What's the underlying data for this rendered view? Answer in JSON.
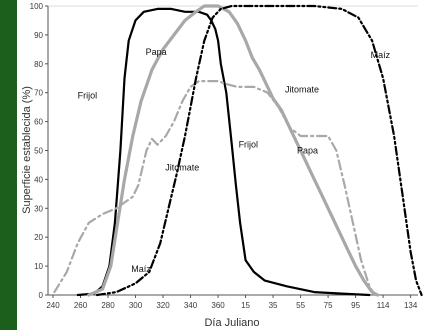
{
  "chart_data": {
    "type": "line",
    "xlabel": "Día Juliano",
    "ylabel": "Superficie establecida (%)",
    "x_tick_labels": [
      "240",
      "260",
      "280",
      "300",
      "320",
      "340",
      "360",
      "15",
      "35",
      "55",
      "75",
      "95",
      "114",
      "134"
    ],
    "x_tick_index": [
      0,
      1,
      2,
      3,
      4,
      5,
      6,
      7,
      8,
      9,
      10,
      11,
      12,
      13
    ],
    "y_ticks": [
      0,
      10,
      20,
      30,
      40,
      50,
      60,
      70,
      80,
      90,
      100
    ],
    "ylim": [
      0,
      100
    ],
    "grid": false,
    "legend": "none",
    "series": [
      {
        "name": "Frijol",
        "color": "#000000",
        "style": "solid",
        "points": [
          [
            0.9,
            0
          ],
          [
            1.5,
            0.5
          ],
          [
            1.8,
            3
          ],
          [
            2.05,
            10
          ],
          [
            2.25,
            25
          ],
          [
            2.45,
            50
          ],
          [
            2.6,
            75
          ],
          [
            2.75,
            88
          ],
          [
            3.0,
            95
          ],
          [
            3.3,
            98
          ],
          [
            3.8,
            99
          ],
          [
            4.3,
            99
          ],
          [
            4.8,
            98
          ],
          [
            5.3,
            98
          ],
          [
            5.6,
            97
          ],
          [
            5.75,
            95
          ],
          [
            5.9,
            92
          ],
          [
            6.0,
            88
          ],
          [
            6.1,
            80
          ],
          [
            6.3,
            70
          ],
          [
            6.5,
            52
          ],
          [
            6.65,
            38
          ],
          [
            6.8,
            25
          ],
          [
            7.0,
            12
          ],
          [
            7.3,
            8
          ],
          [
            7.7,
            5
          ],
          [
            8.5,
            3
          ],
          [
            9.5,
            1
          ],
          [
            10.5,
            0.5
          ],
          [
            11.5,
            0
          ]
        ]
      },
      {
        "name": "Papa",
        "color": "#a8a8a8",
        "style": "solid",
        "points": [
          [
            1.3,
            0
          ],
          [
            1.8,
            2
          ],
          [
            2.1,
            10
          ],
          [
            2.35,
            25
          ],
          [
            2.6,
            40
          ],
          [
            2.9,
            55
          ],
          [
            3.2,
            67
          ],
          [
            3.6,
            78
          ],
          [
            4.0,
            85
          ],
          [
            4.4,
            90
          ],
          [
            4.8,
            95
          ],
          [
            5.2,
            98
          ],
          [
            5.5,
            100
          ],
          [
            6.0,
            100
          ],
          [
            6.4,
            98
          ],
          [
            6.7,
            94
          ],
          [
            7.0,
            88
          ],
          [
            7.25,
            82
          ],
          [
            7.5,
            78
          ],
          [
            7.8,
            72
          ],
          [
            8.0,
            68
          ],
          [
            8.3,
            64
          ],
          [
            8.6,
            58
          ],
          [
            8.9,
            52
          ],
          [
            9.2,
            46
          ],
          [
            9.5,
            40
          ],
          [
            9.8,
            34
          ],
          [
            10.1,
            28
          ],
          [
            10.4,
            22
          ],
          [
            10.7,
            16
          ],
          [
            11.0,
            10
          ],
          [
            11.3,
            5
          ],
          [
            11.6,
            1
          ],
          [
            11.8,
            0
          ]
        ]
      },
      {
        "name": "Jitomate",
        "color": "#a8a8a8",
        "style": "dashdot",
        "points": [
          [
            0.05,
            1
          ],
          [
            0.5,
            8
          ],
          [
            0.9,
            18
          ],
          [
            1.3,
            25
          ],
          [
            1.8,
            28
          ],
          [
            2.3,
            30
          ],
          [
            2.6,
            32
          ],
          [
            2.9,
            34
          ],
          [
            3.1,
            38
          ],
          [
            3.4,
            50
          ],
          [
            3.6,
            54
          ],
          [
            3.8,
            52
          ],
          [
            4.1,
            55
          ],
          [
            4.4,
            60
          ],
          [
            4.7,
            67
          ],
          [
            5.0,
            72
          ],
          [
            5.3,
            74
          ],
          [
            5.7,
            74
          ],
          [
            6.0,
            74
          ],
          [
            6.3,
            73
          ],
          [
            6.7,
            72
          ],
          [
            7.0,
            72
          ],
          [
            7.3,
            72
          ],
          [
            7.8,
            70
          ],
          [
            8.2,
            65
          ],
          [
            8.6,
            58
          ],
          [
            9.0,
            55
          ],
          [
            9.5,
            55
          ],
          [
            10.0,
            55
          ],
          [
            10.3,
            50
          ],
          [
            10.6,
            38
          ],
          [
            10.9,
            25
          ],
          [
            11.2,
            12
          ],
          [
            11.5,
            3
          ],
          [
            11.7,
            0
          ]
        ]
      },
      {
        "name": "Maíz",
        "color": "#000000",
        "style": "dashdotdot",
        "points": [
          [
            1.6,
            0
          ],
          [
            2.3,
            1
          ],
          [
            3.0,
            4
          ],
          [
            3.5,
            8
          ],
          [
            3.9,
            18
          ],
          [
            4.2,
            30
          ],
          [
            4.5,
            42
          ],
          [
            4.8,
            55
          ],
          [
            5.0,
            65
          ],
          [
            5.2,
            75
          ],
          [
            5.5,
            88
          ],
          [
            5.8,
            96
          ],
          [
            6.1,
            99
          ],
          [
            6.5,
            100
          ],
          [
            7.5,
            100
          ],
          [
            8.5,
            100
          ],
          [
            9.5,
            100
          ],
          [
            10.5,
            99
          ],
          [
            11.1,
            96
          ],
          [
            11.6,
            88
          ],
          [
            12.0,
            75
          ],
          [
            12.4,
            55
          ],
          [
            12.7,
            35
          ],
          [
            13.0,
            15
          ],
          [
            13.2,
            5
          ],
          [
            13.4,
            0
          ]
        ]
      }
    ],
    "annotations": [
      {
        "label": "Papa",
        "x": 3.75,
        "y": 83
      },
      {
        "label": "Frijol",
        "x": 1.25,
        "y": 68
      },
      {
        "label": "Maíz",
        "x": 11.9,
        "y": 82
      },
      {
        "label": "Jitomate",
        "x": 9.05,
        "y": 70
      },
      {
        "label": "Frijol",
        "x": 7.1,
        "y": 51
      },
      {
        "label": "Papa",
        "x": 9.25,
        "y": 49
      },
      {
        "label": "Jitomate",
        "x": 4.7,
        "y": 43
      },
      {
        "label": "Maíz",
        "x": 3.2,
        "y": 8
      }
    ]
  }
}
